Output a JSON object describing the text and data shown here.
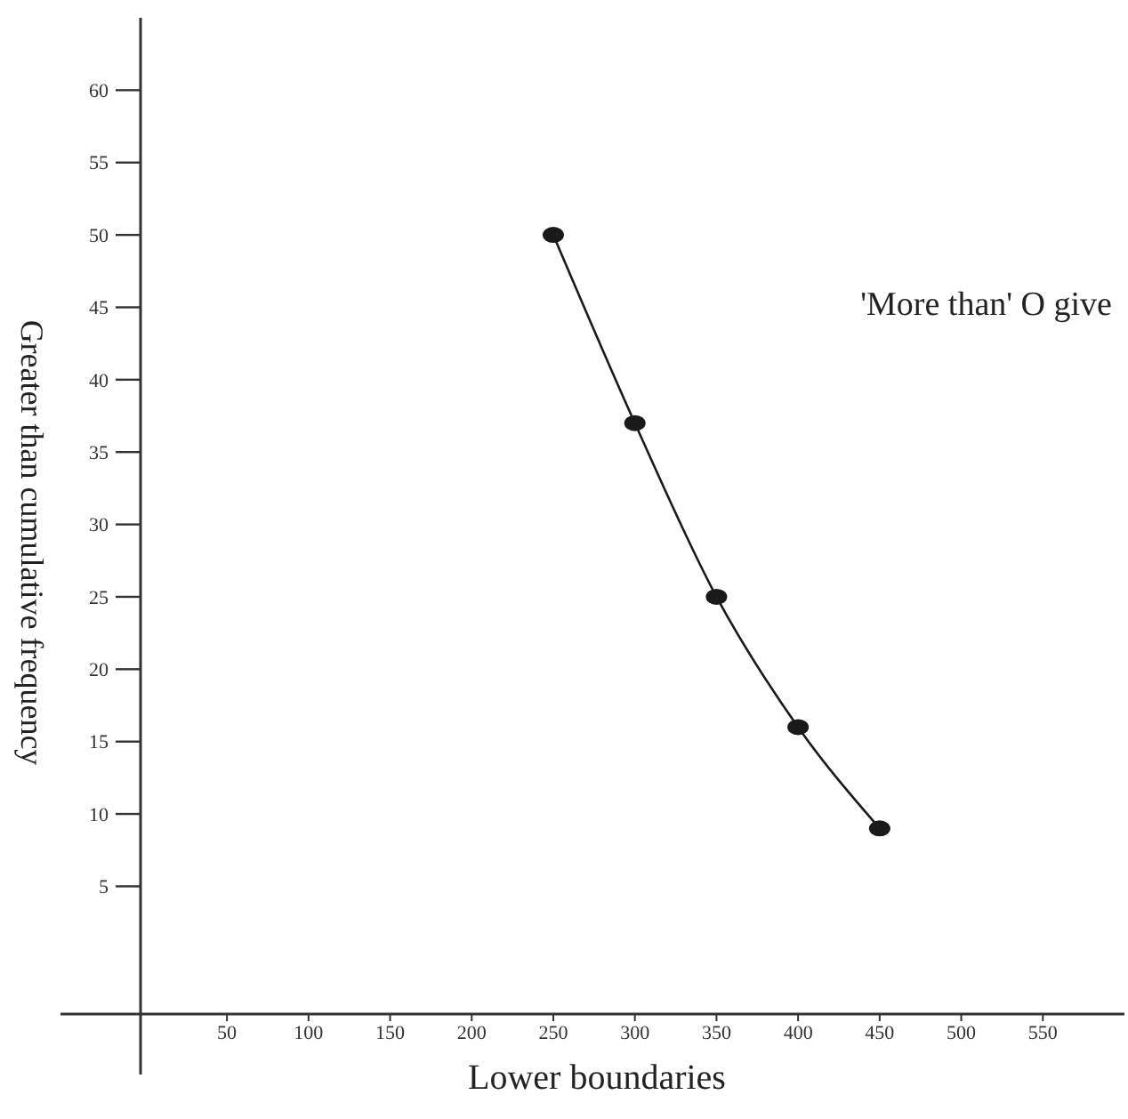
{
  "chart_data": {
    "type": "line",
    "xlabel": "Lower boundaries",
    "ylabel": "Greater than cumulative frequency",
    "annotations": [
      "'More than' O give"
    ],
    "x": [
      250,
      300,
      350,
      400,
      450
    ],
    "series": [
      {
        "color": "#1a1a1a",
        "values": [
          50,
          37,
          25,
          16,
          9
        ]
      }
    ],
    "xlim": [
      -52,
      600
    ],
    "xticks": [
      50,
      100,
      150,
      200,
      250,
      300,
      350,
      400,
      450,
      500,
      550
    ],
    "ylim": [
      -8,
      65
    ],
    "yticks": [
      5,
      10,
      15,
      20,
      25,
      30,
      35,
      40,
      45,
      50,
      55,
      60
    ],
    "marker": "circle",
    "line_style": "solid",
    "grid": false
  }
}
